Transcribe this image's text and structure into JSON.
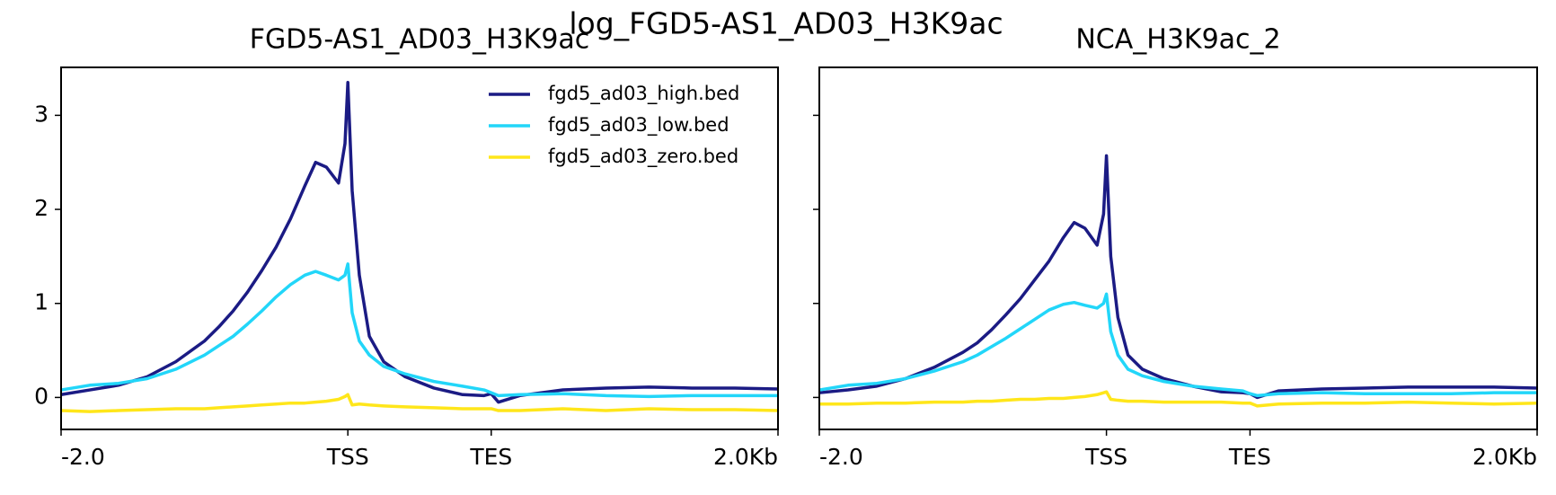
{
  "title": "log_FGD5-AS1_AD03_H3K9ac",
  "chart_data": [
    {
      "type": "line",
      "title": "FGD5-AS1_AD03_H3K9ac",
      "x": [
        0,
        200,
        400,
        600,
        800,
        1000,
        1100,
        1200,
        1300,
        1400,
        1500,
        1600,
        1700,
        1775,
        1850,
        1935,
        1980,
        2000,
        2030,
        2080,
        2150,
        2250,
        2400,
        2600,
        2800,
        2950,
        3000,
        3050,
        3200,
        3500,
        3800,
        4100,
        4400,
        4700,
        5000
      ],
      "xlim": [
        0,
        5000
      ],
      "xticks": [
        {
          "value": 0,
          "label": "-2.0"
        },
        {
          "value": 2000,
          "label": "TSS"
        },
        {
          "value": 3000,
          "label": "TES"
        },
        {
          "value": 5000,
          "label": "2.0Kb"
        }
      ],
      "ylim": [
        -0.34,
        3.51
      ],
      "yticks": [
        0,
        1,
        2,
        3
      ],
      "show_ytick_labels": true,
      "legend": "upper right",
      "series": [
        {
          "name": "fgd5_ad03_high.bed",
          "color": "#1b1b84",
          "values": [
            0.03,
            0.08,
            0.13,
            0.22,
            0.38,
            0.6,
            0.75,
            0.92,
            1.12,
            1.35,
            1.6,
            1.9,
            2.25,
            2.5,
            2.45,
            2.28,
            2.7,
            3.35,
            2.2,
            1.3,
            0.65,
            0.38,
            0.22,
            0.1,
            0.03,
            0.02,
            0.04,
            -0.05,
            0.02,
            0.08,
            0.1,
            0.11,
            0.1,
            0.1,
            0.09
          ]
        },
        {
          "name": "fgd5_ad03_low.bed",
          "color": "#22d6f9",
          "values": [
            0.08,
            0.13,
            0.15,
            0.2,
            0.3,
            0.45,
            0.55,
            0.65,
            0.78,
            0.92,
            1.07,
            1.2,
            1.3,
            1.34,
            1.3,
            1.25,
            1.3,
            1.42,
            0.9,
            0.6,
            0.45,
            0.33,
            0.25,
            0.17,
            0.12,
            0.08,
            0.05,
            0.02,
            0.03,
            0.04,
            0.02,
            0.01,
            0.02,
            0.02,
            0.02
          ]
        },
        {
          "name": "fgd5_ad03_zero.bed",
          "color": "#ffe61a",
          "values": [
            -0.14,
            -0.15,
            -0.14,
            -0.13,
            -0.12,
            -0.12,
            -0.11,
            -0.1,
            -0.09,
            -0.08,
            -0.07,
            -0.06,
            -0.06,
            -0.05,
            -0.04,
            -0.02,
            0.01,
            0.03,
            -0.08,
            -0.07,
            -0.08,
            -0.09,
            -0.1,
            -0.11,
            -0.12,
            -0.12,
            -0.12,
            -0.14,
            -0.14,
            -0.12,
            -0.14,
            -0.12,
            -0.13,
            -0.13,
            -0.14
          ]
        }
      ]
    },
    {
      "type": "line",
      "title": "NCA_H3K9ac_2",
      "x": [
        0,
        200,
        400,
        600,
        800,
        1000,
        1100,
        1200,
        1300,
        1400,
        1500,
        1600,
        1700,
        1775,
        1850,
        1935,
        1980,
        2000,
        2030,
        2080,
        2150,
        2250,
        2400,
        2600,
        2800,
        2950,
        3000,
        3050,
        3200,
        3500,
        3800,
        4100,
        4400,
        4700,
        5000
      ],
      "xlim": [
        0,
        5000
      ],
      "xticks": [
        {
          "value": 0,
          "label": "-2.0"
        },
        {
          "value": 2000,
          "label": "TSS"
        },
        {
          "value": 3000,
          "label": "TES"
        },
        {
          "value": 5000,
          "label": "2.0Kb"
        }
      ],
      "ylim": [
        -0.34,
        3.51
      ],
      "yticks": [
        0,
        1,
        2,
        3
      ],
      "show_ytick_labels": false,
      "series": [
        {
          "color": "#1b1b84",
          "values": [
            0.05,
            0.08,
            0.12,
            0.2,
            0.32,
            0.48,
            0.58,
            0.72,
            0.88,
            1.05,
            1.25,
            1.45,
            1.7,
            1.86,
            1.8,
            1.62,
            1.95,
            2.57,
            1.5,
            0.85,
            0.45,
            0.3,
            0.2,
            0.12,
            0.06,
            0.05,
            0.04,
            0.0,
            0.07,
            0.09,
            0.1,
            0.11,
            0.11,
            0.11,
            0.1
          ]
        },
        {
          "color": "#22d6f9",
          "values": [
            0.08,
            0.13,
            0.15,
            0.2,
            0.28,
            0.38,
            0.45,
            0.54,
            0.63,
            0.73,
            0.83,
            0.93,
            0.99,
            1.01,
            0.98,
            0.95,
            1.0,
            1.1,
            0.7,
            0.45,
            0.3,
            0.23,
            0.17,
            0.12,
            0.09,
            0.07,
            0.04,
            0.02,
            0.04,
            0.05,
            0.04,
            0.04,
            0.04,
            0.05,
            0.05
          ]
        },
        {
          "color": "#ffe61a",
          "values": [
            -0.07,
            -0.07,
            -0.06,
            -0.06,
            -0.05,
            -0.05,
            -0.04,
            -0.04,
            -0.03,
            -0.02,
            -0.02,
            -0.01,
            -0.01,
            0,
            0.01,
            0.03,
            0.05,
            0.06,
            -0.02,
            -0.03,
            -0.04,
            -0.04,
            -0.05,
            -0.05,
            -0.05,
            -0.06,
            -0.06,
            -0.09,
            -0.07,
            -0.06,
            -0.06,
            -0.05,
            -0.06,
            -0.07,
            -0.06
          ]
        }
      ]
    }
  ]
}
